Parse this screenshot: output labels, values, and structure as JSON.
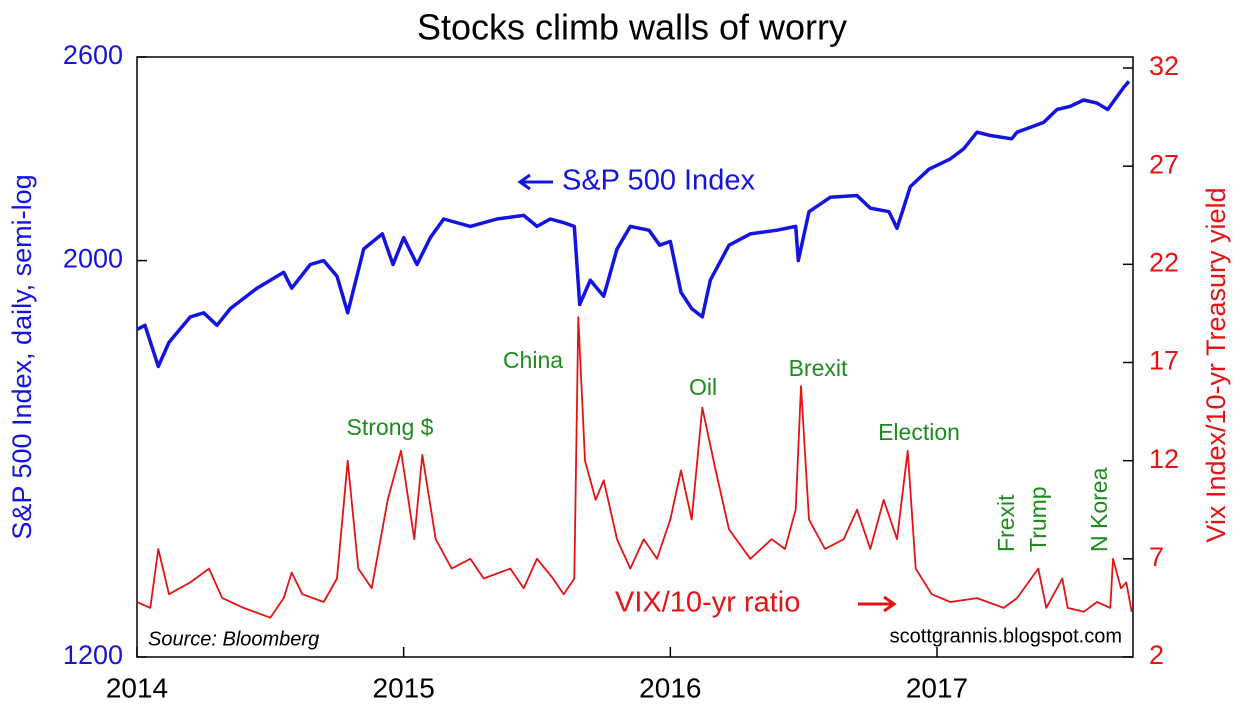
{
  "chart_data": {
    "type": "line",
    "title": "Stocks climb walls of worry",
    "y_label": "S&P 500 Index, daily, semi-log",
    "y2_label": "Vix Index/10-yr Treasury yield",
    "xlim": [
      2014,
      2017.735
    ],
    "xticks": [
      2014,
      2015,
      2016,
      2017
    ],
    "ylim": [
      1200,
      2600
    ],
    "yticks": [
      1200,
      2000,
      2600
    ],
    "log_y": true,
    "y2lim": [
      2,
      32.56
    ],
    "y2ticks": [
      2,
      7,
      12,
      17,
      22,
      27,
      32
    ],
    "series": [
      {
        "name": "S&P 500 Index",
        "color": "#1414e0",
        "x": [
          2014.0,
          2014.03,
          2014.08,
          2014.12,
          2014.2,
          2014.25,
          2014.3,
          2014.35,
          2014.45,
          2014.55,
          2014.58,
          2014.65,
          2014.7,
          2014.75,
          2014.79,
          2014.85,
          2014.92,
          2014.96,
          2015.0,
          2015.05,
          2015.1,
          2015.15,
          2015.25,
          2015.35,
          2015.45,
          2015.5,
          2015.55,
          2015.6,
          2015.64,
          2015.66,
          2015.7,
          2015.75,
          2015.8,
          2015.85,
          2015.92,
          2015.96,
          2016.0,
          2016.04,
          2016.08,
          2016.12,
          2016.15,
          2016.22,
          2016.3,
          2016.4,
          2016.47,
          2016.48,
          2016.52,
          2016.6,
          2016.7,
          2016.75,
          2016.82,
          2016.85,
          2016.9,
          2016.97,
          2017.05,
          2017.1,
          2017.15,
          2017.2,
          2017.28,
          2017.3,
          2017.4,
          2017.45,
          2017.5,
          2017.55,
          2017.6,
          2017.64,
          2017.7,
          2017.72
        ],
        "values": [
          1830,
          1840,
          1745,
          1800,
          1860,
          1870,
          1840,
          1880,
          1930,
          1970,
          1930,
          1990,
          2000,
          1960,
          1870,
          2030,
          2070,
          1990,
          2060,
          1990,
          2060,
          2110,
          2090,
          2110,
          2120,
          2090,
          2110,
          2100,
          2090,
          1890,
          1950,
          1910,
          2030,
          2090,
          2080,
          2040,
          2050,
          1920,
          1880,
          1860,
          1950,
          2040,
          2070,
          2080,
          2090,
          2000,
          2130,
          2170,
          2175,
          2140,
          2130,
          2085,
          2200,
          2250,
          2280,
          2310,
          2360,
          2350,
          2340,
          2360,
          2390,
          2430,
          2440,
          2460,
          2450,
          2430,
          2500,
          2520
        ]
      },
      {
        "name": "VIX/10-yr ratio",
        "color": "#e41414",
        "axis": "y2",
        "x": [
          2014.0,
          2014.05,
          2014.08,
          2014.12,
          2014.2,
          2014.27,
          2014.32,
          2014.4,
          2014.5,
          2014.55,
          2014.58,
          2014.62,
          2014.7,
          2014.75,
          2014.79,
          2014.83,
          2014.88,
          2014.94,
          2014.99,
          2015.04,
          2015.07,
          2015.12,
          2015.18,
          2015.25,
          2015.3,
          2015.4,
          2015.45,
          2015.5,
          2015.56,
          2015.6,
          2015.64,
          2015.655,
          2015.68,
          2015.72,
          2015.75,
          2015.8,
          2015.85,
          2015.9,
          2015.95,
          2016.0,
          2016.04,
          2016.08,
          2016.12,
          2016.17,
          2016.22,
          2016.3,
          2016.38,
          2016.43,
          2016.47,
          2016.49,
          2016.52,
          2016.58,
          2016.65,
          2016.7,
          2016.75,
          2016.8,
          2016.85,
          2016.89,
          2016.92,
          2016.98,
          2017.05,
          2017.15,
          2017.25,
          2017.3,
          2017.38,
          2017.41,
          2017.47,
          2017.49,
          2017.55,
          2017.6,
          2017.65,
          2017.66,
          2017.69,
          2017.71,
          2017.73
        ],
        "values": [
          4.8,
          4.5,
          7.5,
          5.2,
          5.8,
          6.5,
          5.0,
          4.5,
          4.0,
          5.0,
          6.3,
          5.2,
          4.8,
          6.0,
          12.0,
          6.5,
          5.5,
          10.0,
          12.5,
          8.0,
          12.3,
          8.0,
          6.5,
          7.0,
          6.0,
          6.5,
          5.5,
          7.0,
          6.0,
          5.2,
          6.0,
          19.3,
          12.0,
          10.0,
          11.0,
          8.0,
          6.5,
          8.0,
          7.0,
          9.0,
          11.5,
          9.0,
          14.7,
          11.5,
          8.5,
          7.0,
          8.0,
          7.5,
          9.5,
          15.8,
          9.0,
          7.5,
          8.0,
          9.5,
          7.5,
          10.0,
          8.0,
          12.5,
          6.5,
          5.2,
          4.8,
          5.0,
          4.5,
          5.0,
          6.5,
          4.5,
          6.0,
          4.5,
          4.3,
          4.8,
          4.5,
          7.0,
          5.5,
          5.8,
          4.3
        ]
      }
    ],
    "annotations": [
      "China",
      "Oil",
      "Brexit",
      "Strong $",
      "Election",
      "Frexit",
      "Trump",
      "N Korea"
    ],
    "source": "Source: Bloomberg",
    "credit": "scottgrannis.blogspot.com"
  }
}
